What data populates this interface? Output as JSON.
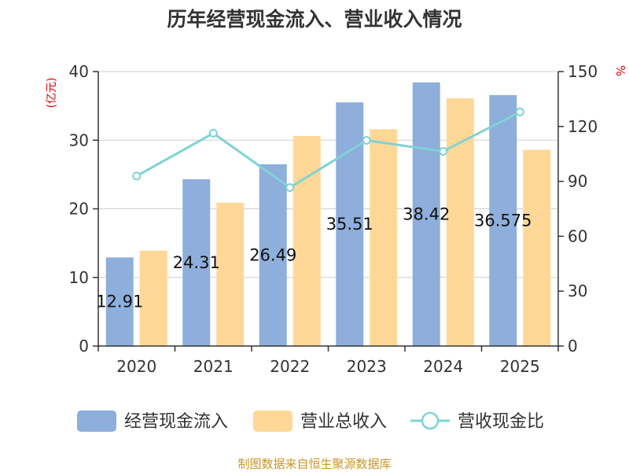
{
  "chart_data": {
    "type": "bar",
    "title": "历年经营现金流入、营业收入情况",
    "categories": [
      "2020",
      "2021",
      "2022",
      "2023",
      "2024",
      "2025"
    ],
    "series": [
      {
        "name": "经营现金流入",
        "axis": "left",
        "kind": "bar",
        "color": "#8eaedb",
        "values": [
          12.91,
          24.31,
          26.49,
          35.51,
          38.42,
          36.575
        ],
        "labels": [
          "12.91",
          "24.31",
          "26.49",
          "35.51",
          "38.42",
          "36.575"
        ]
      },
      {
        "name": "营业总收入",
        "axis": "left",
        "kind": "bar",
        "color": "#ffd898",
        "values": [
          13.9,
          20.9,
          30.6,
          31.6,
          36.1,
          28.6
        ]
      },
      {
        "name": "营收现金比",
        "axis": "right",
        "kind": "line",
        "color": "#7fd3d6",
        "values": [
          92.9,
          116.3,
          86.6,
          112.4,
          106.4,
          127.9
        ]
      }
    ],
    "y_left": {
      "label": "(亿元)",
      "ylim": [
        0,
        40
      ],
      "ticks": [
        0,
        10,
        20,
        30,
        40
      ]
    },
    "y_right": {
      "label": "%",
      "ylim": [
        0,
        150
      ],
      "ticks": [
        0,
        30,
        60,
        90,
        120,
        150
      ]
    },
    "grid": true,
    "legend_position": "bottom"
  },
  "footer": {
    "source": "制图数据来自恒生聚源数据库"
  },
  "colors": {
    "title": "#333333",
    "axis_unit": "#e00000",
    "source": "#c8962a"
  }
}
